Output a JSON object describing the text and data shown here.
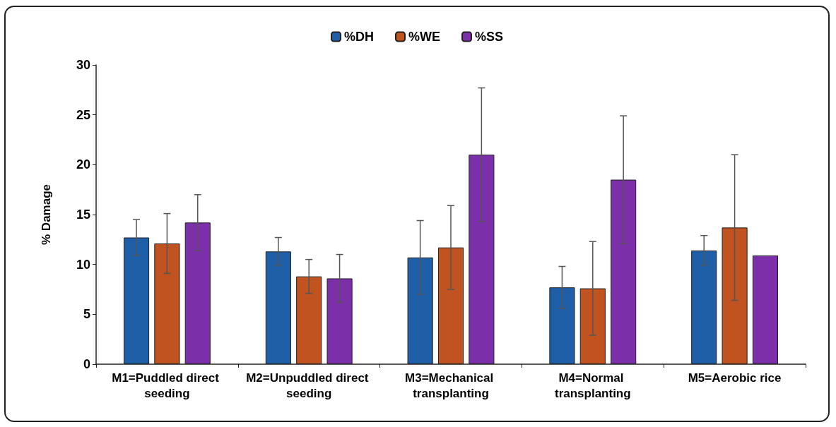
{
  "chart_data": {
    "type": "bar",
    "ylabel": "% Damage",
    "categories": [
      "M1=Puddled direct seeding",
      "M2=Unpuddled direct seeding",
      "M3=Mechanical transplanting",
      "M4=Normal transplanting",
      "M5=Aerobic rice"
    ],
    "series": [
      {
        "name": "%DH",
        "color": "#1f5fa8",
        "values": [
          12.7,
          11.3,
          10.7,
          7.7,
          11.4
        ],
        "errors": [
          1.8,
          1.4,
          3.7,
          2.1,
          1.5
        ]
      },
      {
        "name": "%WE",
        "color": "#c0531f",
        "values": [
          12.1,
          8.8,
          11.7,
          7.6,
          13.7
        ],
        "errors": [
          3.0,
          1.7,
          4.2,
          4.7,
          7.3
        ]
      },
      {
        "name": "%SS",
        "color": "#7b2fa8",
        "values": [
          14.2,
          8.6,
          21.0,
          18.5,
          10.9
        ],
        "errors": [
          2.8,
          2.4,
          6.7,
          6.4,
          null
        ]
      }
    ],
    "ylim": [
      0,
      30
    ],
    "yticks": [
      0,
      5,
      10,
      15,
      20,
      25,
      30
    ],
    "grid": false,
    "legend": "top"
  }
}
